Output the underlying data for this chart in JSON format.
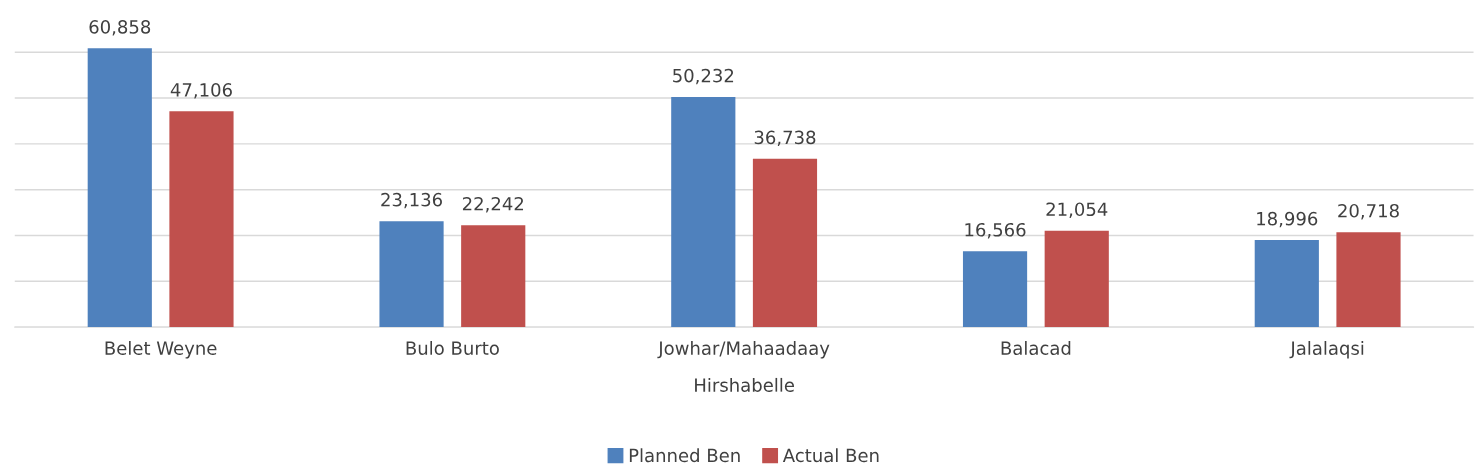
{
  "chart_data": {
    "type": "bar",
    "xlabel": "Hirshabelle",
    "categories": [
      "Belet Weyne",
      "Bulo Burto",
      "Jowhar/Mahaadaay",
      "Balacad",
      "Jalalaqsi"
    ],
    "series": [
      {
        "name": "Planned Ben",
        "color": "#4f81bd",
        "values": [
          60858,
          23136,
          50232,
          16566,
          18996
        ],
        "value_labels": [
          "60,858",
          "23,136",
          "50,232",
          "16,566",
          "18,996"
        ]
      },
      {
        "name": "Actual Ben",
        "color": "#c0504d",
        "values": [
          47106,
          22242,
          36738,
          21054,
          20718
        ],
        "value_labels": [
          "47,106",
          "22,242",
          "36,738",
          "21,054",
          "20,718"
        ]
      }
    ],
    "tick_labels": "x",
    "grid": "y",
    "legend": "bottom"
  }
}
